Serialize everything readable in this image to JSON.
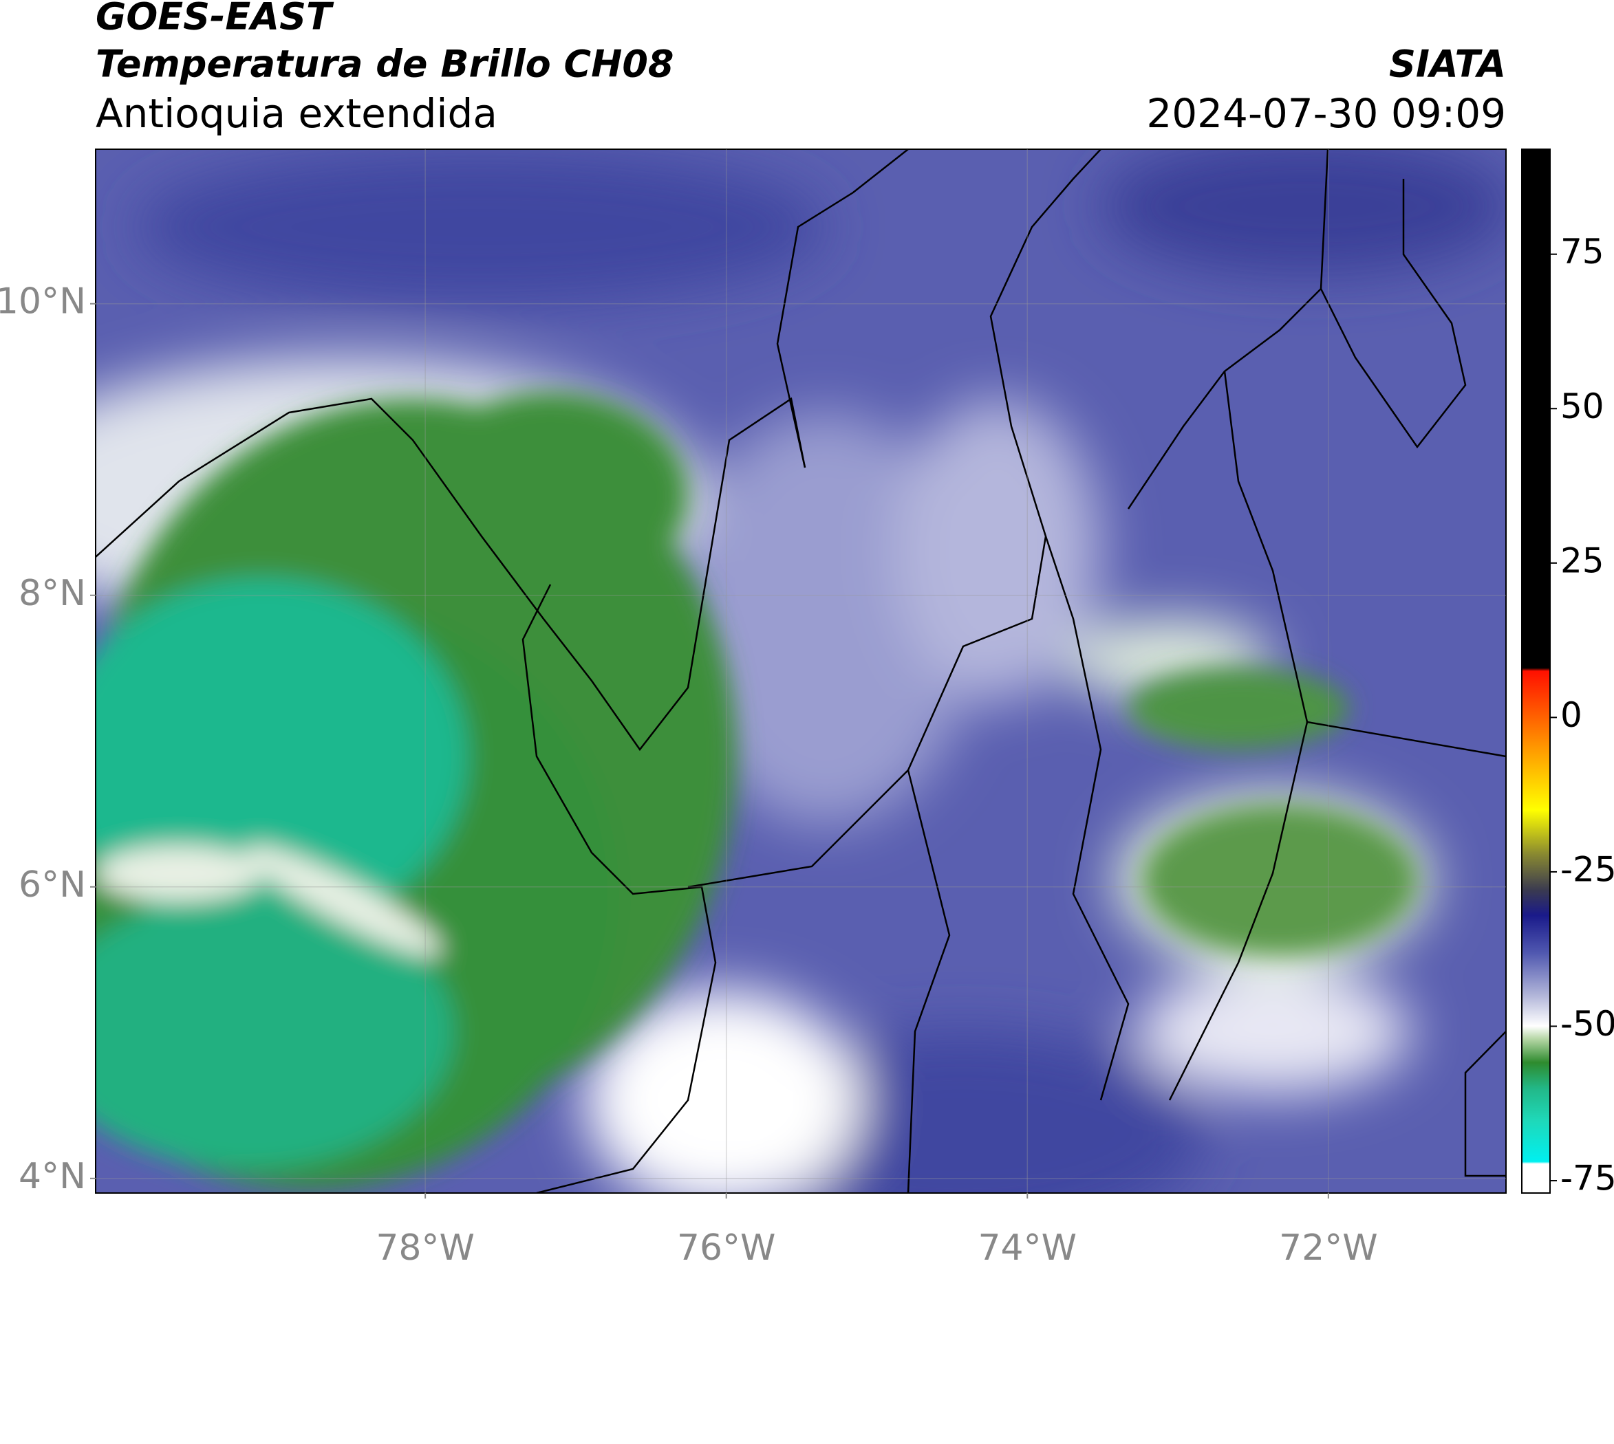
{
  "header": {
    "title": "GOES-EAST",
    "subtitle": "Temperatura de Brillo CH08",
    "region": "Antioquia extendida",
    "source": "SIATA",
    "datetime": "2024-07-30 09:09"
  },
  "map": {
    "xlim": [
      -80.19,
      -70.82
    ],
    "ylim": [
      3.9,
      11.06
    ],
    "xticks": [
      {
        "value": -78,
        "label": "78°W"
      },
      {
        "value": -76,
        "label": "76°W"
      },
      {
        "value": -74,
        "label": "74°W"
      },
      {
        "value": -72,
        "label": "72°W"
      }
    ],
    "yticks": [
      {
        "value": 4,
        "label": "4°N"
      },
      {
        "value": 6,
        "label": "6°N"
      },
      {
        "value": 8,
        "label": "8°N"
      },
      {
        "value": 10,
        "label": "10°N"
      }
    ],
    "grid": true
  },
  "colorbar": {
    "lim": [
      -77,
      92
    ],
    "ticks": [
      75,
      50,
      25,
      0,
      -25,
      -50,
      -75
    ]
  }
}
